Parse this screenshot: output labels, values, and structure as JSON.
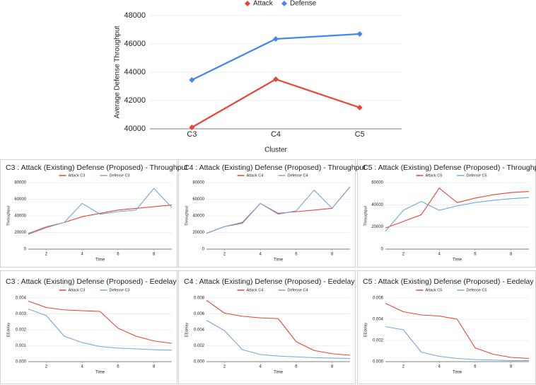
{
  "chart_data": [
    {
      "type": "line",
      "categories": [
        "C3",
        "C4",
        "C5"
      ],
      "x_label": "Cluster",
      "y_label": "Average Defense Throughput",
      "marker": "diamond",
      "grid": true,
      "ylim": [
        40000,
        48000
      ],
      "yticks": [
        40000,
        42000,
        44000,
        46000,
        48000
      ],
      "series": [
        {
          "name": "Attack",
          "color": "#ea4335",
          "values": [
            40100,
            43500,
            41500
          ]
        },
        {
          "name": "Defense",
          "color": "#4285f4",
          "values": [
            43450,
            46350,
            46700
          ]
        }
      ]
    },
    {
      "type": "line",
      "title": "C3 : Attack (Existing) Defense (Proposed) - Throughput",
      "x_label": "Time",
      "y_label": "Throughput",
      "grid": true,
      "x": [
        1,
        2,
        3,
        4,
        5,
        6,
        7,
        8,
        9
      ],
      "xlim": [
        1,
        9
      ],
      "xticks": [
        2,
        4,
        6,
        8
      ],
      "ylim": [
        0,
        80000
      ],
      "yticks": [
        0,
        20000,
        40000,
        60000,
        80000
      ],
      "series": [
        {
          "name": "Attack C3",
          "color": "#ea4335",
          "values": [
            18000,
            26000,
            32000,
            39000,
            43000,
            47000,
            49000,
            51000,
            53000
          ]
        },
        {
          "name": "Defense C3",
          "color": "#6fa8dc",
          "values": [
            19000,
            27000,
            32000,
            55000,
            42000,
            45000,
            47000,
            73000,
            50000
          ]
        }
      ]
    },
    {
      "type": "line",
      "title": "C4 : Attack (Existing) Defense (Proposed) - Throughput",
      "x_label": "Time",
      "y_label": "Throughput",
      "grid": true,
      "x": [
        1,
        2,
        3,
        4,
        5,
        6,
        7,
        8,
        9
      ],
      "xlim": [
        1,
        9
      ],
      "xticks": [
        2,
        4,
        6,
        8
      ],
      "ylim": [
        0,
        80000
      ],
      "yticks": [
        0,
        20000,
        40000,
        60000,
        80000
      ],
      "series": [
        {
          "name": "Attack C4",
          "color": "#ea4335",
          "values": [
            19000,
            27000,
            32000,
            55000,
            43000,
            45000,
            47000,
            49000,
            75000
          ]
        },
        {
          "name": "Defense C4",
          "color": "#6fa8dc",
          "values": [
            19000,
            27000,
            31000,
            55000,
            42000,
            46000,
            71000,
            49000,
            75000
          ]
        }
      ]
    },
    {
      "type": "line",
      "title": "C5 : Attack (Existing) Defense (Proposed) - Throughput",
      "x_label": "Time",
      "y_label": "Throughput",
      "grid": true,
      "x": [
        1,
        2,
        3,
        4,
        5,
        6,
        7,
        8,
        9
      ],
      "xlim": [
        1,
        9
      ],
      "xticks": [
        2,
        4,
        6,
        8
      ],
      "ylim": [
        0,
        60000
      ],
      "yticks": [
        0,
        20000,
        40000,
        60000
      ],
      "series": [
        {
          "name": "Attack C5",
          "color": "#ea4335",
          "values": [
            19000,
            25000,
            31000,
            55000,
            42000,
            46000,
            49000,
            51000,
            52000
          ]
        },
        {
          "name": "Defense C5",
          "color": "#6fa8dc",
          "values": [
            16000,
            35000,
            43000,
            35000,
            39000,
            42000,
            44000,
            45500,
            46500
          ]
        }
      ]
    },
    {
      "type": "line",
      "title": "C3 : Attack (Existing) Defense (Proposed) - Eedelay",
      "x_label": "Time",
      "y_label": "EEdelay",
      "grid": true,
      "x": [
        1,
        2,
        3,
        4,
        5,
        6,
        7,
        8,
        9
      ],
      "xlim": [
        1,
        9
      ],
      "xticks": [
        2,
        4,
        6,
        8
      ],
      "ylim": [
        0,
        0.004
      ],
      "yticks": [
        {
          "value": 0,
          "label": "0.000"
        },
        {
          "value": 0.001,
          "label": "0.001"
        },
        {
          "value": 0.002,
          "label": "0.002"
        },
        {
          "value": 0.003,
          "label": "0.003"
        },
        {
          "value": 0.004,
          "label": "0.004"
        }
      ],
      "series": [
        {
          "name": "Attack C3",
          "color": "#ea4335",
          "values": [
            0.0038,
            0.0034,
            0.00325,
            0.0032,
            0.00315,
            0.0021,
            0.0016,
            0.0013,
            0.00115
          ]
        },
        {
          "name": "Defense C3",
          "color": "#6fa8dc",
          "values": [
            0.0033,
            0.0029,
            0.0016,
            0.0012,
            0.00095,
            0.00085,
            0.0008,
            0.00075,
            0.00072
          ]
        }
      ]
    },
    {
      "type": "line",
      "title": "C4 : Attack (Existing) Defense (Proposed) - Eedelay",
      "x_label": "Time",
      "y_label": "EEdelay",
      "grid": true,
      "x": [
        1,
        2,
        3,
        4,
        5,
        6,
        7,
        8,
        9
      ],
      "xlim": [
        1,
        9
      ],
      "xticks": [
        2,
        4,
        6,
        8
      ],
      "ylim": [
        0,
        0.008
      ],
      "yticks": [
        {
          "value": 0,
          "label": "0.000"
        },
        {
          "value": 0.002,
          "label": "0.002"
        },
        {
          "value": 0.004,
          "label": "0.004"
        },
        {
          "value": 0.006,
          "label": "0.006"
        },
        {
          "value": 0.008,
          "label": "0.008"
        }
      ],
      "series": [
        {
          "name": "Attack C4",
          "color": "#ea4335",
          "values": [
            0.0077,
            0.0061,
            0.0057,
            0.0055,
            0.0054,
            0.0025,
            0.0014,
            0.001,
            0.0008
          ]
        },
        {
          "name": "Defense C4",
          "color": "#6fa8dc",
          "values": [
            0.0052,
            0.0039,
            0.0015,
            0.0009,
            0.0007,
            0.0006,
            0.0005,
            0.00045,
            0.0004
          ]
        }
      ]
    },
    {
      "type": "line",
      "title": "C5 : Attack (Existing) Defense (Proposed) - Eedelay",
      "x_label": "Time",
      "y_label": "EEdelay",
      "grid": true,
      "x": [
        1,
        2,
        3,
        4,
        5,
        6,
        7,
        8,
        9
      ],
      "xlim": [
        1,
        9
      ],
      "xticks": [
        2,
        4,
        6,
        8
      ],
      "ylim": [
        0,
        0.006
      ],
      "yticks": [
        {
          "value": 0,
          "label": "0.000"
        },
        {
          "value": 0.002,
          "label": "0.002"
        },
        {
          "value": 0.004,
          "label": "0.004"
        },
        {
          "value": 0.006,
          "label": "0.006"
        }
      ],
      "series": [
        {
          "name": "Attack C5",
          "color": "#ea4335",
          "values": [
            0.0055,
            0.0047,
            0.0044,
            0.0043,
            0.004,
            0.0013,
            0.0007,
            0.0004,
            0.0003
          ]
        },
        {
          "name": "Defense C5",
          "color": "#6fa8dc",
          "values": [
            0.0033,
            0.003,
            0.0009,
            0.0005,
            0.0003,
            0.0002,
            0.00015,
            0.0001,
            0.0001
          ]
        }
      ]
    }
  ]
}
